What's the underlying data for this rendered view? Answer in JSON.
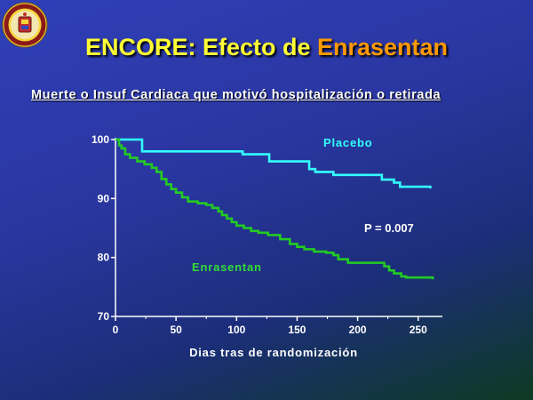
{
  "slide": {
    "title_part1": "ENCORE: Efecto de ",
    "title_part2": "Enrasentan",
    "subtitle": "Muerte o Insuf Cardiaca que motivó hospitalización o retirada"
  },
  "colors": {
    "title_main": "#ffff33",
    "title_accent": "#ff9900",
    "placebo": "#33ffff",
    "enrasentan": "#22cc22",
    "enrasentan_label": "#33dd33"
  },
  "chart_data": {
    "type": "line",
    "title": "",
    "xlabel": "Dias tras de randomización",
    "ylabel": "",
    "xlim": [
      0,
      270
    ],
    "ylim": [
      70,
      100
    ],
    "xticks": [
      0,
      50,
      100,
      150,
      200,
      250
    ],
    "yticks": [
      70,
      80,
      90,
      100
    ],
    "step": true,
    "annotation": "P = 0.007",
    "series": [
      {
        "name": "Placebo",
        "x": [
          0,
          20,
          22,
          100,
          105,
          125,
          127,
          155,
          160,
          165,
          180,
          205,
          220,
          225,
          230,
          235,
          260
        ],
        "y": [
          100,
          100,
          98,
          98,
          97.5,
          97.5,
          96.3,
          96.3,
          95,
          94.5,
          94,
          94,
          93.2,
          93.2,
          92.7,
          92,
          91.7
        ]
      },
      {
        "name": "Enrasentan",
        "x": [
          0,
          3,
          5,
          8,
          12,
          18,
          24,
          30,
          34,
          38,
          42,
          46,
          50,
          55,
          60,
          68,
          75,
          80,
          85,
          88,
          92,
          96,
          100,
          106,
          112,
          118,
          126,
          136,
          144,
          150,
          156,
          164,
          174,
          180,
          184,
          192,
          218,
          222,
          226,
          230,
          236,
          240,
          262
        ],
        "y": [
          100,
          99,
          98.5,
          97.5,
          96.9,
          96.3,
          95.8,
          95.2,
          94.5,
          93.3,
          92.4,
          91.6,
          91.0,
          90.2,
          89.5,
          89.2,
          88.9,
          88.4,
          87.8,
          87.2,
          86.6,
          86.0,
          85.4,
          85.0,
          84.5,
          84.2,
          83.8,
          83.1,
          82.3,
          81.8,
          81.4,
          81.0,
          80.8,
          80.4,
          79.7,
          79.1,
          79.1,
          78.5,
          77.8,
          77.3,
          76.8,
          76.6,
          76.3
        ]
      }
    ]
  }
}
